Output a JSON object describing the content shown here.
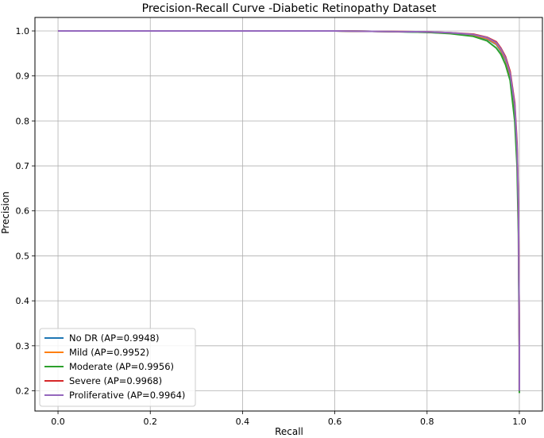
{
  "chart_data": {
    "type": "line",
    "title": "Precision-Recall Curve -Diabetic Retinopathy Dataset",
    "xlabel": "Recall",
    "ylabel": "Precision",
    "xlim": [
      -0.05,
      1.05
    ],
    "ylim": [
      0.155,
      1.03
    ],
    "xticks": [
      "0.0",
      "0.2",
      "0.4",
      "0.6",
      "0.8",
      "1.0"
    ],
    "yticks": [
      "0.2",
      "0.3",
      "0.4",
      "0.5",
      "0.6",
      "0.7",
      "0.8",
      "0.9",
      "1.0"
    ],
    "grid": true,
    "legend_position": "lower-left",
    "series": [
      {
        "name": "No DR (AP=0.9948)",
        "color": "#1f77b4",
        "points": [
          [
            0.0,
            1.0
          ],
          [
            0.2,
            1.0
          ],
          [
            0.4,
            1.0
          ],
          [
            0.6,
            1.0
          ],
          [
            0.7,
            0.999
          ],
          [
            0.8,
            0.997
          ],
          [
            0.85,
            0.995
          ],
          [
            0.9,
            0.99
          ],
          [
            0.93,
            0.982
          ],
          [
            0.95,
            0.97
          ],
          [
            0.96,
            0.955
          ],
          [
            0.97,
            0.935
          ],
          [
            0.98,
            0.9
          ],
          [
            0.99,
            0.82
          ],
          [
            0.995,
            0.72
          ],
          [
            0.998,
            0.6
          ],
          [
            0.999,
            0.45
          ],
          [
            1.0,
            0.3
          ],
          [
            1.0,
            0.2
          ]
        ]
      },
      {
        "name": "Mild (AP=0.9952)",
        "color": "#ff7f0e",
        "points": [
          [
            0.0,
            1.0
          ],
          [
            0.2,
            1.0
          ],
          [
            0.4,
            1.0
          ],
          [
            0.6,
            1.0
          ],
          [
            0.7,
            0.999
          ],
          [
            0.8,
            0.998
          ],
          [
            0.85,
            0.995
          ],
          [
            0.9,
            0.991
          ],
          [
            0.93,
            0.983
          ],
          [
            0.95,
            0.971
          ],
          [
            0.96,
            0.957
          ],
          [
            0.97,
            0.937
          ],
          [
            0.98,
            0.9
          ],
          [
            0.99,
            0.83
          ],
          [
            0.995,
            0.73
          ],
          [
            0.998,
            0.6
          ],
          [
            0.999,
            0.45
          ],
          [
            1.0,
            0.3
          ],
          [
            1.0,
            0.2
          ]
        ]
      },
      {
        "name": "Moderate (AP=0.9956)",
        "color": "#2ca02c",
        "points": [
          [
            0.0,
            1.0
          ],
          [
            0.2,
            1.0
          ],
          [
            0.4,
            1.0
          ],
          [
            0.6,
            1.0
          ],
          [
            0.7,
            0.999
          ],
          [
            0.8,
            0.997
          ],
          [
            0.85,
            0.994
          ],
          [
            0.9,
            0.988
          ],
          [
            0.93,
            0.978
          ],
          [
            0.95,
            0.962
          ],
          [
            0.96,
            0.948
          ],
          [
            0.97,
            0.925
          ],
          [
            0.98,
            0.89
          ],
          [
            0.99,
            0.8
          ],
          [
            0.995,
            0.7
          ],
          [
            0.998,
            0.55
          ],
          [
            0.999,
            0.4
          ],
          [
            1.0,
            0.3
          ],
          [
            1.0,
            0.195
          ]
        ]
      },
      {
        "name": "Severe (AP=0.9968)",
        "color": "#d62728",
        "points": [
          [
            0.0,
            1.0
          ],
          [
            0.2,
            1.0
          ],
          [
            0.4,
            1.0
          ],
          [
            0.6,
            1.0
          ],
          [
            0.7,
            0.999
          ],
          [
            0.8,
            0.998
          ],
          [
            0.85,
            0.996
          ],
          [
            0.9,
            0.993
          ],
          [
            0.93,
            0.986
          ],
          [
            0.95,
            0.976
          ],
          [
            0.96,
            0.962
          ],
          [
            0.97,
            0.943
          ],
          [
            0.98,
            0.91
          ],
          [
            0.99,
            0.84
          ],
          [
            0.995,
            0.75
          ],
          [
            0.998,
            0.62
          ],
          [
            0.999,
            0.47
          ],
          [
            1.0,
            0.3
          ],
          [
            1.0,
            0.2
          ]
        ]
      },
      {
        "name": "Proliferative (AP=0.9964)",
        "color": "#9467bd",
        "points": [
          [
            0.0,
            1.0
          ],
          [
            0.2,
            1.0
          ],
          [
            0.4,
            1.0
          ],
          [
            0.6,
            1.0
          ],
          [
            0.7,
            0.999
          ],
          [
            0.8,
            0.998
          ],
          [
            0.85,
            0.996
          ],
          [
            0.9,
            0.992
          ],
          [
            0.93,
            0.985
          ],
          [
            0.95,
            0.974
          ],
          [
            0.96,
            0.96
          ],
          [
            0.97,
            0.94
          ],
          [
            0.98,
            0.905
          ],
          [
            0.99,
            0.835
          ],
          [
            0.995,
            0.74
          ],
          [
            0.998,
            0.61
          ],
          [
            0.999,
            0.46
          ],
          [
            1.0,
            0.3
          ],
          [
            1.0,
            0.2
          ]
        ]
      }
    ]
  }
}
